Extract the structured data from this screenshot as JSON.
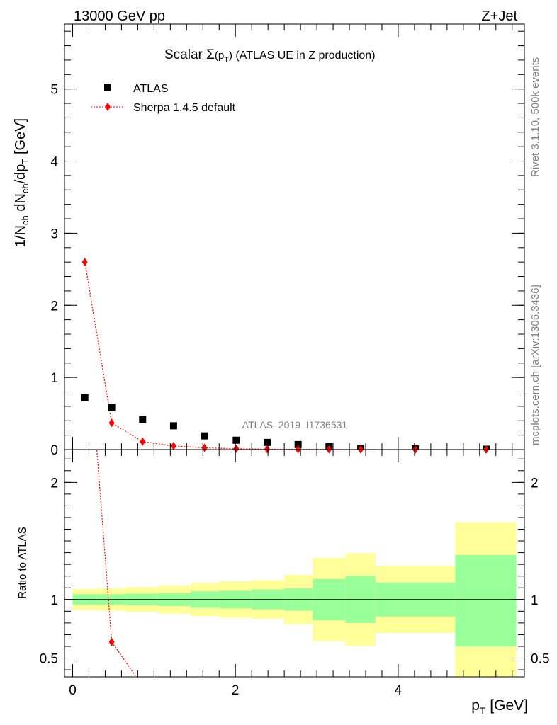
{
  "header": {
    "left": "13000 GeV pp",
    "right": "Z+Jet"
  },
  "side_text": {
    "rivet": "Rivet 3.1.10,  500k events",
    "source": "mcplots.cern.ch [arXiv:1306.3436]"
  },
  "analysis_id": "ATLAS_2019_I1736531",
  "chart_data": [
    {
      "type": "scatter",
      "title": {
        "pre": "Scalar ",
        "sigma": "Σ",
        "paren_open": "(p",
        "sub": "T",
        "paren_close": ")",
        "post": " (ATLAS UE in Z production)"
      },
      "ylabel": {
        "a": "1/N",
        "a_sub": "ch",
        "b": " dN",
        "b_sub": "ch",
        "c": "/dp",
        "c_sub": "T",
        "d": " [GeV]"
      },
      "xlim": [
        -0.1,
        5.55
      ],
      "ylim": [
        0,
        5.9
      ],
      "yticks": [
        0,
        1,
        2,
        3,
        4,
        5
      ],
      "ytick_labels": [
        "0",
        "1",
        "2",
        "3",
        "4",
        "5"
      ],
      "bin_edges": [
        0,
        0.3,
        0.65,
        1.05,
        1.45,
        1.8,
        2.2,
        2.6,
        2.95,
        3.35,
        3.72,
        4.7,
        5.45
      ],
      "legend_position": "top-left",
      "series": [
        {
          "name": "ATLAS",
          "marker": "square",
          "color": "#000000",
          "x": [
            0.15,
            0.48,
            0.86,
            1.24,
            1.62,
            2.01,
            2.39,
            2.77,
            3.15,
            3.54,
            4.21,
            5.08
          ],
          "y": [
            0.72,
            0.58,
            0.42,
            0.33,
            0.19,
            0.13,
            0.1,
            0.07,
            0.04,
            0.02,
            0.01,
            0.005
          ]
        },
        {
          "name": "Sherpa 1.4.5 default",
          "marker": "diamond",
          "line": "dotted",
          "color": "#ff0000",
          "x": [
            0.15,
            0.48,
            0.86,
            1.24,
            1.62,
            2.01,
            2.39,
            2.77,
            3.15,
            3.54,
            4.21,
            5.08
          ],
          "y": [
            2.6,
            0.37,
            0.11,
            0.05,
            0.025,
            0.012,
            0.006,
            0.003,
            0.002,
            0.001,
            0.0005,
            0.0002
          ]
        }
      ]
    },
    {
      "type": "line",
      "ylabel": "Ratio to ATLAS",
      "xlabel": {
        "main": "p",
        "sub": "T",
        "unit": " [GeV]"
      },
      "xlim": [
        -0.1,
        5.55
      ],
      "ylim": [
        0.34,
        2.28
      ],
      "xticks": [
        0,
        2,
        4
      ],
      "xtick_labels": [
        "0",
        "2",
        "4"
      ],
      "yticks": [
        0.5,
        1,
        2
      ],
      "ytick_labels": [
        "0.5",
        "1",
        "2"
      ],
      "bands": {
        "bin_edges": [
          0,
          0.3,
          0.65,
          1.05,
          1.45,
          1.8,
          2.2,
          2.6,
          2.95,
          3.35,
          3.72,
          4.7,
          5.45
        ],
        "green_low": [
          0.955,
          0.955,
          0.95,
          0.945,
          0.93,
          0.925,
          0.915,
          0.905,
          0.825,
          0.8,
          0.855,
          0.6
        ],
        "green_high": [
          1.045,
          1.045,
          1.05,
          1.055,
          1.07,
          1.075,
          1.085,
          1.095,
          1.175,
          1.2,
          1.145,
          1.38
        ],
        "yellow_low": [
          0.91,
          0.905,
          0.895,
          0.88,
          0.86,
          0.845,
          0.835,
          0.79,
          0.645,
          0.605,
          0.715,
          0.34
        ],
        "yellow_high": [
          1.09,
          1.095,
          1.105,
          1.12,
          1.14,
          1.155,
          1.165,
          1.21,
          1.355,
          1.395,
          1.285,
          1.66
        ],
        "green_color": "#99ff99",
        "yellow_color": "#ffff99"
      },
      "series": [
        {
          "name": "Sherpa 1.4.5 default",
          "color": "#ff0000",
          "x": [
            0.15,
            0.48,
            0.86
          ],
          "y": [
            3.6,
            0.638,
            0.262
          ]
        }
      ]
    }
  ]
}
